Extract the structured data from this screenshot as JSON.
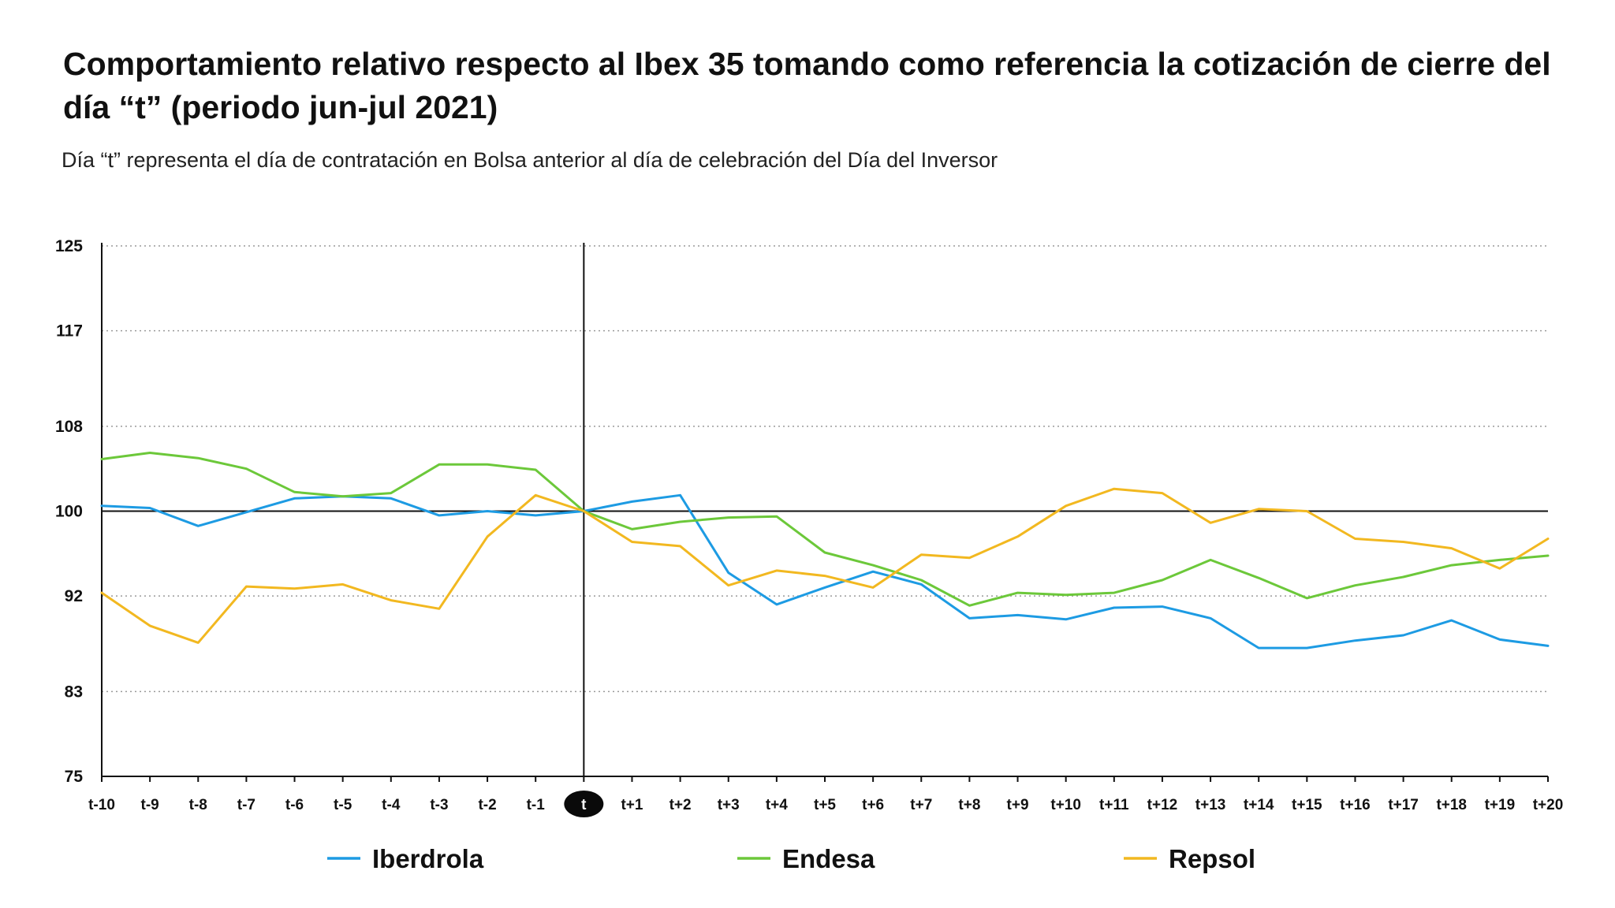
{
  "title": "Comportamiento relativo respecto al Ibex 35 tomando como referencia la cotización de cierre del día “t” (periodo jun-jul 2021)",
  "subtitle": "Día “t” representa el día de contratación en Bolsa anterior al día de celebración del Día del Inversor",
  "chart_data": {
    "type": "line",
    "title": "Comportamiento relativo respecto al Ibex 35 tomando como referencia la cotización de cierre del día “t” (periodo jun-jul 2021)",
    "subtitle": "Día “t” representa el día de contratación en Bolsa anterior al día de celebración del Día del Inversor",
    "xlabel": "",
    "ylabel": "",
    "ylim": [
      75,
      125
    ],
    "yticks": [
      75,
      83,
      92,
      100,
      108,
      117,
      125
    ],
    "grid": "horizontal dotted",
    "legend_position": "bottom",
    "reference_line_y": 100,
    "reference_category": "t",
    "categories": [
      "t-10",
      "t-9",
      "t-8",
      "t-7",
      "t-6",
      "t-5",
      "t-4",
      "t-3",
      "t-2",
      "t-1",
      "t",
      "t+1",
      "t+2",
      "t+3",
      "t+4",
      "t+5",
      "t+6",
      "t+7",
      "t+8",
      "t+9",
      "t+10",
      "t+11",
      "t+12",
      "t+13",
      "t+14",
      "t+15",
      "t+16",
      "t+17",
      "t+18",
      "t+19",
      "t+20"
    ],
    "series": [
      {
        "name": "Iberdrola",
        "color": "#1d9be3",
        "values": [
          100.5,
          100.3,
          98.6,
          99.9,
          101.2,
          101.4,
          101.2,
          99.6,
          100.0,
          99.6,
          100.0,
          100.9,
          101.5,
          94.2,
          91.2,
          92.8,
          94.3,
          93.1,
          89.9,
          90.2,
          89.8,
          90.9,
          91.0,
          89.9,
          87.1,
          87.1,
          87.8,
          88.3,
          89.7,
          87.9,
          87.3
        ]
      },
      {
        "name": "Endesa",
        "color": "#6cc83a",
        "values": [
          104.9,
          105.5,
          105.0,
          104.0,
          101.8,
          101.4,
          101.7,
          104.4,
          104.4,
          103.9,
          100.0,
          98.3,
          99.0,
          99.4,
          99.5,
          96.1,
          94.9,
          93.5,
          91.1,
          92.3,
          92.1,
          92.3,
          93.5,
          95.4,
          93.7,
          91.8,
          93.0,
          93.8,
          94.9,
          95.4,
          95.8
        ]
      },
      {
        "name": "Repsol",
        "color": "#f2b820",
        "values": [
          92.3,
          89.2,
          87.6,
          92.9,
          92.7,
          93.1,
          91.6,
          90.8,
          97.6,
          101.5,
          100.0,
          97.1,
          96.7,
          93.0,
          94.4,
          93.9,
          92.8,
          95.9,
          95.6,
          97.6,
          100.5,
          102.1,
          101.7,
          98.9,
          100.2,
          100.0,
          97.4,
          97.1,
          96.5,
          94.6,
          97.4
        ]
      }
    ]
  },
  "legend": [
    {
      "label": "Iberdrola",
      "color": "#1d9be3"
    },
    {
      "label": "Endesa",
      "color": "#6cc83a"
    },
    {
      "label": "Repsol",
      "color": "#f2b820"
    }
  ]
}
